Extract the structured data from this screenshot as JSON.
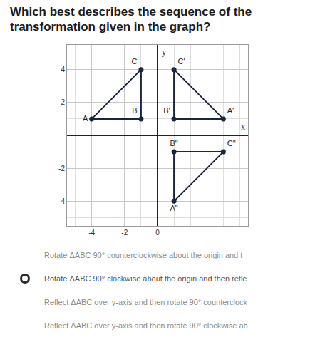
{
  "question": "Which best describes the sequence of the transformation given in the graph?",
  "chart_data": {
    "type": "line",
    "xlabel": "x",
    "ylabel": "y",
    "xlim": [
      -5.5,
      5.5
    ],
    "ylim": [
      -5.5,
      5.5
    ],
    "xticks": [
      -4,
      -2,
      0
    ],
    "yticks": [
      -4,
      -2,
      2,
      4
    ],
    "grid": true,
    "marker": "circle",
    "series": [
      {
        "labels": [
          "A",
          "B",
          "C"
        ],
        "x": [
          -4,
          -1,
          -1
        ],
        "y": [
          1,
          1,
          4
        ],
        "color": "#1c2540"
      },
      {
        "labels": [
          "A'",
          "B'",
          "C'"
        ],
        "x": [
          4,
          1,
          1
        ],
        "y": [
          1,
          1,
          4
        ],
        "color": "#1c2540"
      },
      {
        "labels": [
          "A\"",
          "B\"",
          "C\""
        ],
        "x": [
          1,
          1,
          4
        ],
        "y": [
          -4,
          -1,
          -1
        ],
        "color": "#1c2540"
      }
    ]
  },
  "options": [
    {
      "text": "Rotate ΔABC 90° counterclockwise about the origin and t",
      "radio": false
    },
    {
      "text": "Rotate ΔABC 90° clockwise about the origin and then refle",
      "radio": true
    },
    {
      "text": "Reflect ΔABC over y-axis and then rotate 90° counterclock",
      "radio": false
    },
    {
      "text": "Reflect ΔABC over y-axis and then rotate 90° clockwise ab",
      "radio": false
    }
  ]
}
